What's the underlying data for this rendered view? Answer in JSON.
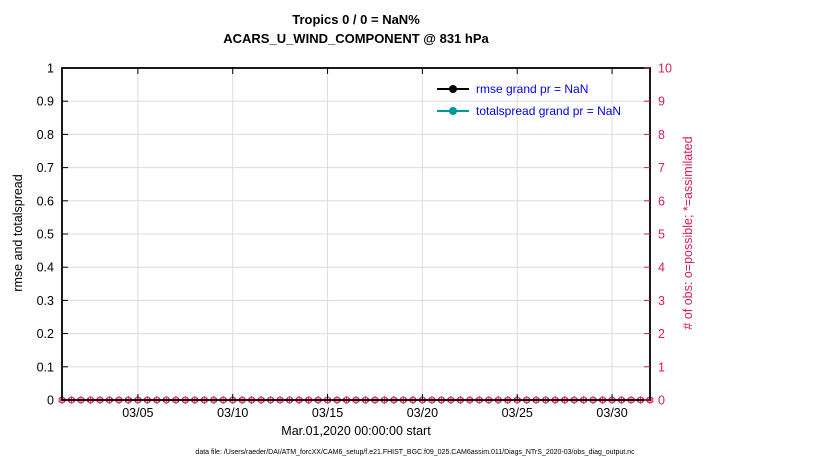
{
  "title": {
    "line1": "Tropics 0 / 0 = NaN%",
    "line2": "ACARS_U_WIND_COMPONENT @ 831 hPa"
  },
  "axes": {
    "left_label": "rmse and totalspread",
    "right_label": "# of obs: o=possible; *=assimilated",
    "x_label": "Mar.01,2020 00:00:00 start"
  },
  "legend": {
    "text_color": "#0000EE",
    "items": [
      {
        "label": "rmse grand pr = NaN",
        "line_color": "#000000",
        "marker": "filled-circle"
      },
      {
        "label": "totalspread grand pr = NaN",
        "line_color": "#009999",
        "marker": "filled-circle"
      }
    ]
  },
  "footer": "data file: /Users/raeder/DAI/ATM_forcXX/CAM6_setup/f.e21.FHIST_BGC.f09_025.CAM6assim.011/Diags_NTrS_2020-03/obs_diag_output.nc",
  "colors": {
    "right_axis": "#D81B60",
    "grid": "#DCDCDC",
    "frame": "#000000"
  },
  "chart_data": {
    "type": "line",
    "title": "Tropics 0 / 0 = NaN% — ACARS_U_WIND_COMPONENT @ 831 hPa",
    "xlabel": "Mar.01,2020 00:00:00 start",
    "ylabel": "rmse and totalspread",
    "ylabel_right": "# of obs: o=possible; *=assimilated",
    "ylim": [
      0,
      1
    ],
    "yticks": [
      {
        "v": 0,
        "label": "0"
      },
      {
        "v": 0.1,
        "label": "0.1"
      },
      {
        "v": 0.2,
        "label": "0.2"
      },
      {
        "v": 0.3,
        "label": "0.3"
      },
      {
        "v": 0.4,
        "label": "0.4"
      },
      {
        "v": 0.5,
        "label": "0.5"
      },
      {
        "v": 0.6,
        "label": "0.6"
      },
      {
        "v": 0.7,
        "label": "0.7"
      },
      {
        "v": 0.8,
        "label": "0.8"
      },
      {
        "v": 0.9,
        "label": "0.9"
      },
      {
        "v": 1,
        "label": "1"
      }
    ],
    "ylim_right": [
      0,
      10
    ],
    "yticks_right": [
      {
        "v": 0,
        "label": "0"
      },
      {
        "v": 1,
        "label": "1"
      },
      {
        "v": 2,
        "label": "2"
      },
      {
        "v": 3,
        "label": "3"
      },
      {
        "v": 4,
        "label": "4"
      },
      {
        "v": 5,
        "label": "5"
      },
      {
        "v": 6,
        "label": "6"
      },
      {
        "v": 7,
        "label": "7"
      },
      {
        "v": 8,
        "label": "8"
      },
      {
        "v": 9,
        "label": "9"
      },
      {
        "v": 10,
        "label": "10"
      }
    ],
    "x_axis": {
      "start_day": 1,
      "end_day": 32,
      "month": "03",
      "ticks": [
        {
          "day": 5,
          "label": "03/05"
        },
        {
          "day": 10,
          "label": "03/10"
        },
        {
          "day": 15,
          "label": "03/15"
        },
        {
          "day": 20,
          "label": "03/20"
        },
        {
          "day": 25,
          "label": "03/25"
        },
        {
          "day": 30,
          "label": "03/30"
        }
      ]
    },
    "grid": true,
    "legend_position": "top-right-inside",
    "series": [
      {
        "name": "rmse grand pr = NaN",
        "axis": "left",
        "color": "#000000",
        "values_all": "NaN",
        "plotted_points": 0
      },
      {
        "name": "totalspread grand pr = NaN",
        "axis": "left",
        "color": "#009999",
        "values_all": "NaN",
        "plotted_points": 0
      },
      {
        "name": "# of obs possible (o)",
        "axis": "right",
        "color": "#D81B60",
        "marker": "o",
        "value_each_time": 0
      },
      {
        "name": "# of obs assimilated (*)",
        "axis": "right",
        "color": "#D81B60",
        "marker": "*",
        "value_each_time": 0
      }
    ],
    "obs_times": {
      "start_day": 1,
      "end_day": 32,
      "step_days": 0.5
    },
    "summary": {
      "possible_total": 0,
      "assimilated_total": 0,
      "percent": "NaN%"
    }
  }
}
